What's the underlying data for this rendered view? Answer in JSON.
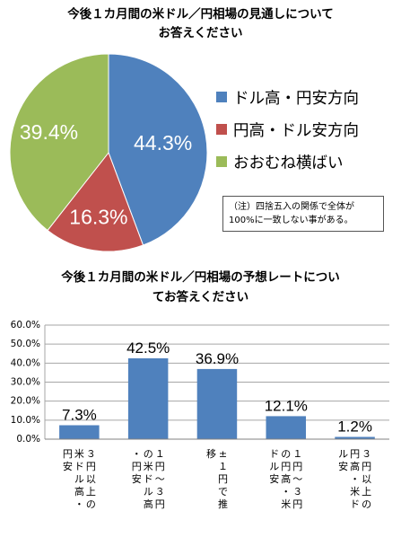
{
  "pie_chart": {
    "title_lines": [
      "今後１カ月間の米ドル／円相場の見通しについて",
      "お答えください"
    ],
    "note_lines": [
      "（注）四捨五入の関係で全体が",
      "100%に一致しない事がある。"
    ]
  },
  "bar_chart": {
    "title_lines": [
      "今後１カ月間の米ドル／円相場の予想レートについ",
      "てお答えください"
    ]
  },
  "chart_data": [
    {
      "type": "pie",
      "categories": [
        "ドル高・円安方向",
        "円高・ドル安方向",
        "おおむね横ばい"
      ],
      "values": [
        44.3,
        16.3,
        39.4
      ],
      "data_labels": [
        "44.3%",
        "16.3%",
        "39.4%"
      ],
      "colors": [
        "#4f81bd",
        "#c0504d",
        "#9bbb59"
      ],
      "start_angle_deg": 0,
      "direction": "clockwise",
      "legend_position": "right"
    },
    {
      "type": "bar",
      "categories": [
        "３円以上の米ドル高・円安",
        "１円～３円の米ドル高・円安",
        "±１円で推移",
        "１円～３円の円高・米ドル安",
        "３円以上の円高・米ドル安"
      ],
      "values": [
        7.3,
        42.5,
        36.9,
        12.1,
        1.2
      ],
      "data_labels": [
        "7.3%",
        "42.5%",
        "36.9%",
        "12.1%",
        "1.2%"
      ],
      "ylim": [
        0,
        60
      ],
      "yticks": [
        "0.0%",
        "10.0%",
        "20.0%",
        "30.0%",
        "40.0%",
        "50.0%",
        "60.0%"
      ],
      "grid": true,
      "color": "#4f81bd",
      "category_label_orientation": "vertical"
    }
  ]
}
